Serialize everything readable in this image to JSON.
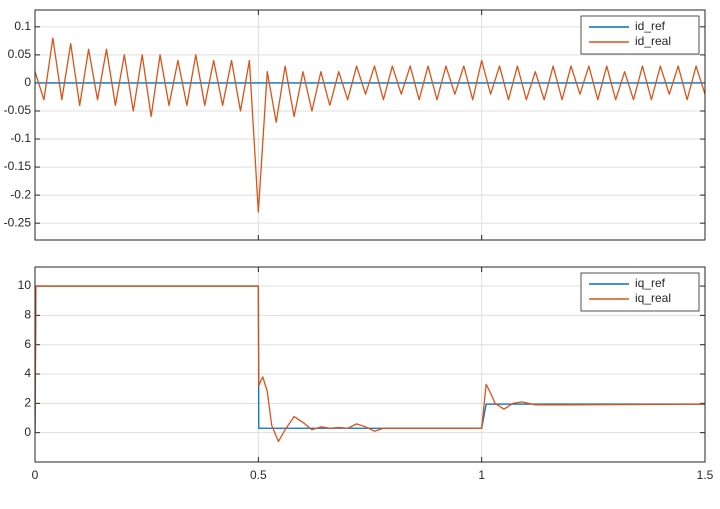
{
  "chart_data": [
    {
      "type": "line",
      "xlim": [
        0,
        1.5
      ],
      "xticks": [
        0,
        0.5,
        1,
        1.5
      ],
      "xtick_labels": false,
      "ylim": [
        -0.28,
        0.13
      ],
      "yticks": [
        -0.25,
        -0.2,
        -0.15,
        -0.1,
        -0.05,
        0,
        0.05,
        0.1
      ],
      "grid": true,
      "legend": "upper right",
      "series": [
        {
          "name": "id_ref",
          "color": "#0072bd",
          "x": [
            0,
            1.5
          ],
          "values": [
            0,
            0
          ]
        },
        {
          "name": "id_real",
          "color": "#d95319",
          "x": [
            0,
            0.02,
            0.04,
            0.06,
            0.08,
            0.1,
            0.12,
            0.14,
            0.16,
            0.18,
            0.2,
            0.22,
            0.24,
            0.26,
            0.28,
            0.3,
            0.32,
            0.34,
            0.36,
            0.38,
            0.4,
            0.42,
            0.44,
            0.46,
            0.48,
            0.5,
            0.52,
            0.54,
            0.56,
            0.58,
            0.6,
            0.62,
            0.64,
            0.66,
            0.68,
            0.7,
            0.72,
            0.74,
            0.76,
            0.78,
            0.8,
            0.82,
            0.84,
            0.86,
            0.88,
            0.9,
            0.92,
            0.94,
            0.96,
            0.98,
            1,
            1.02,
            1.04,
            1.06,
            1.08,
            1.1,
            1.12,
            1.14,
            1.16,
            1.18,
            1.2,
            1.22,
            1.24,
            1.26,
            1.28,
            1.3,
            1.32,
            1.34,
            1.36,
            1.38,
            1.4,
            1.42,
            1.44,
            1.46,
            1.48,
            1.5
          ],
          "values": [
            0.02,
            -0.03,
            0.08,
            -0.03,
            0.07,
            -0.04,
            0.06,
            -0.03,
            0.06,
            -0.04,
            0.05,
            -0.05,
            0.05,
            -0.06,
            0.05,
            -0.04,
            0.04,
            -0.04,
            0.05,
            -0.04,
            0.04,
            -0.04,
            0.04,
            -0.05,
            0.04,
            -0.23,
            0.02,
            -0.07,
            0.03,
            -0.06,
            0.02,
            -0.05,
            0.02,
            -0.04,
            0.02,
            -0.03,
            0.03,
            -0.02,
            0.03,
            -0.03,
            0.03,
            -0.02,
            0.03,
            -0.03,
            0.03,
            -0.03,
            0.03,
            -0.02,
            0.03,
            -0.03,
            0.04,
            -0.02,
            0.03,
            -0.03,
            0.03,
            -0.03,
            0.02,
            -0.03,
            0.03,
            -0.03,
            0.03,
            -0.02,
            0.03,
            -0.03,
            0.03,
            -0.03,
            0.02,
            -0.03,
            0.03,
            -0.03,
            0.03,
            -0.02,
            0.03,
            -0.03,
            0.03,
            -0.02
          ]
        }
      ]
    },
    {
      "type": "line",
      "xlim": [
        0,
        1.5
      ],
      "xticks": [
        0,
        0.5,
        1,
        1.5
      ],
      "xtick_labels": true,
      "ylim": [
        -2,
        11.3
      ],
      "yticks": [
        0,
        2,
        4,
        6,
        8,
        10
      ],
      "grid": true,
      "legend": "upper right",
      "series": [
        {
          "name": "iq_ref",
          "color": "#0072bd",
          "x": [
            0,
            0.002,
            0.5,
            0.501,
            1,
            1.01,
            1.5
          ],
          "values": [
            0,
            10,
            10,
            0.3,
            0.3,
            1.95,
            1.95
          ]
        },
        {
          "name": "iq_real",
          "color": "#d95319",
          "x": [
            0,
            0.002,
            0.5,
            0.501,
            0.505,
            0.51,
            0.52,
            0.53,
            0.545,
            0.56,
            0.58,
            0.6,
            0.62,
            0.64,
            0.66,
            0.68,
            0.7,
            0.72,
            0.74,
            0.76,
            0.78,
            0.8,
            0.9,
            1,
            1.01,
            1.02,
            1.03,
            1.05,
            1.07,
            1.09,
            1.12,
            1.2,
            1.5
          ],
          "values": [
            0,
            10,
            10,
            3.2,
            3.5,
            3.8,
            2.8,
            0.5,
            -0.6,
            0.2,
            1.1,
            0.7,
            0.2,
            0.4,
            0.3,
            0.35,
            0.3,
            0.6,
            0.4,
            0.1,
            0.3,
            0.3,
            0.3,
            0.3,
            3.3,
            2.7,
            2.0,
            1.6,
            2.0,
            2.1,
            1.9,
            1.9,
            1.95
          ]
        }
      ]
    }
  ]
}
